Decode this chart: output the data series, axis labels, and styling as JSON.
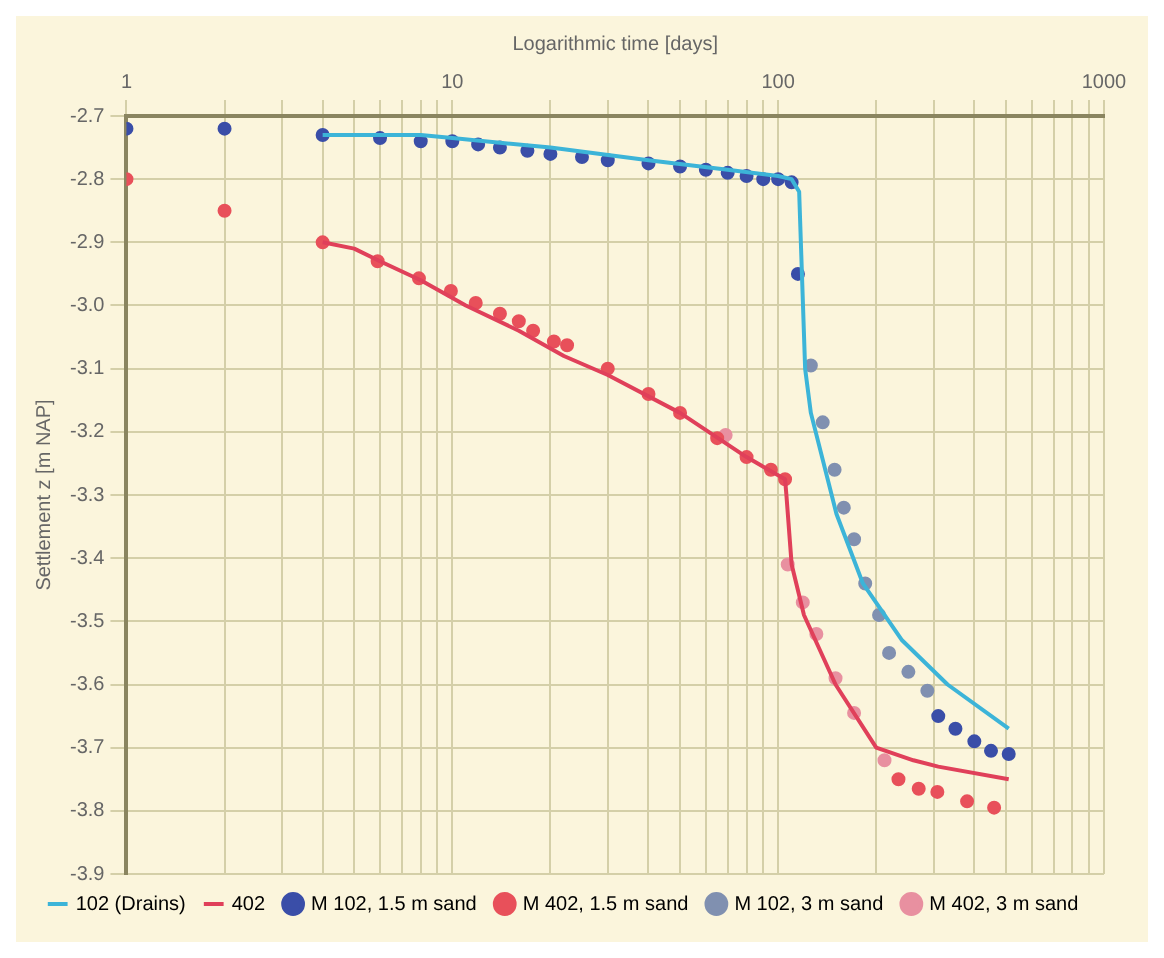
{
  "chart_data": {
    "type": "line",
    "xlabel": "Logarithmic time [days]",
    "ylabel": "Settlement z [m NAP]",
    "log": "x",
    "xlim": [
      1,
      1000
    ],
    "ylim": [
      -3.9,
      -2.7
    ],
    "xticks": [
      1,
      {
        "value": 2,
        "label": null
      },
      {
        "value": 3,
        "label": null
      },
      {
        "value": 4,
        "label": null
      },
      {
        "value": 5,
        "label": null
      },
      {
        "value": 6,
        "label": null
      },
      {
        "value": 7,
        "label": null
      },
      {
        "value": 8,
        "label": null
      },
      {
        "value": 9,
        "label": null
      },
      10,
      {
        "value": 20,
        "label": null
      },
      {
        "value": 30,
        "label": null
      },
      {
        "value": 40,
        "label": null
      },
      {
        "value": 50,
        "label": null
      },
      {
        "value": 60,
        "label": null
      },
      {
        "value": 70,
        "label": null
      },
      {
        "value": 80,
        "label": null
      },
      {
        "value": 90,
        "label": null
      },
      100,
      {
        "value": 200,
        "label": null
      },
      {
        "value": 300,
        "label": null
      },
      {
        "value": 400,
        "label": null
      },
      {
        "value": 500,
        "label": null
      },
      {
        "value": 600,
        "label": null
      },
      {
        "value": 700,
        "label": null
      },
      {
        "value": 800,
        "label": null
      },
      {
        "value": 900,
        "label": null
      },
      1000
    ],
    "yticks": [
      -2.7,
      -2.8,
      -2.9,
      {
        "value": -3,
        "label": "-3.0"
      },
      -3.1,
      -3.2,
      -3.3,
      -3.4,
      -3.5,
      -3.6,
      -3.7,
      -3.8,
      -3.9
    ],
    "grid": true,
    "legend": "bottom",
    "line_style": "solid",
    "series": [
      {
        "name": "102 (Drains)",
        "marker": "none",
        "color": "#3cb4d8",
        "x": [
          4,
          6,
          8,
          10,
          20,
          40,
          70,
          100,
          110,
          116,
          121,
          126,
          151,
          182,
          240,
          331,
          510
        ],
        "values": [
          -2.73,
          -2.73,
          -2.73,
          -2.735,
          -2.75,
          -2.77,
          -2.785,
          -2.795,
          -2.8,
          -2.82,
          -3.1,
          -3.17,
          -3.33,
          -3.44,
          -3.53,
          -3.6,
          -3.67
        ]
      },
      {
        "name": "402",
        "marker": "none",
        "color": "#e0405a",
        "x": [
          4,
          5,
          6,
          8,
          11,
          16,
          22,
          30,
          50,
          80,
          105,
          106,
          110,
          120,
          150,
          200,
          260,
          310,
          510
        ],
        "values": [
          -2.9,
          -2.91,
          -2.93,
          -2.96,
          -3,
          -3.04,
          -3.08,
          -3.11,
          -3.17,
          -3.24,
          -3.275,
          -3.3,
          -3.41,
          -3.49,
          -3.6,
          -3.7,
          -3.72,
          -3.73,
          -3.75
        ]
      },
      {
        "name": "M 102, 1.5 m sand",
        "type": "scatter",
        "marker": "circle",
        "color": "#3a4ea8",
        "x": [
          1,
          2,
          4,
          6,
          8,
          10,
          12,
          14,
          17,
          20,
          25,
          30,
          40,
          50,
          60,
          70,
          80,
          90,
          100,
          110,
          115,
          310,
          350,
          400,
          450,
          510
        ],
        "values": [
          -2.72,
          -2.72,
          -2.73,
          -2.735,
          -2.74,
          -2.74,
          -2.745,
          -2.75,
          -2.755,
          -2.76,
          -2.765,
          -2.77,
          -2.775,
          -2.78,
          -2.785,
          -2.79,
          -2.795,
          -2.8,
          -2.8,
          -2.805,
          -2.95,
          -3.65,
          -3.67,
          -3.69,
          -3.705,
          -3.71
        ]
      },
      {
        "name": "M 402, 1.5 m sand",
        "type": "scatter",
        "marker": "circle",
        "color": "#e8505a",
        "x": [
          1,
          2,
          4,
          5.9,
          7.9,
          9.9,
          11.8,
          14,
          16,
          17.7,
          20.5,
          22.5,
          30,
          40,
          50,
          65,
          80,
          95,
          105,
          234,
          270,
          308,
          380,
          460
        ],
        "values": [
          -2.8,
          -2.85,
          -2.9,
          -2.93,
          -2.957,
          -2.977,
          -2.996,
          -3.013,
          -3.025,
          -3.04,
          -3.057,
          -3.063,
          -3.1,
          -3.14,
          -3.17,
          -3.21,
          -3.24,
          -3.26,
          -3.275,
          -3.75,
          -3.765,
          -3.77,
          -3.785,
          -3.795
        ]
      },
      {
        "name": "M 102, 3 m sand",
        "type": "scatter",
        "marker": "circle",
        "color": "#8090b0",
        "x": [
          126,
          137,
          149,
          159,
          171,
          185,
          204,
          219,
          251,
          287
        ],
        "values": [
          -3.095,
          -3.185,
          -3.26,
          -3.32,
          -3.37,
          -3.44,
          -3.49,
          -3.55,
          -3.58,
          -3.61
        ]
      },
      {
        "name": "M 402, 3 m sand",
        "type": "scatter",
        "marker": "circle",
        "color": "#e890a0",
        "x": [
          69,
          107,
          119,
          131,
          150,
          171,
          212
        ],
        "values": [
          -3.205,
          -3.41,
          -3.47,
          -3.52,
          -3.59,
          -3.645,
          -3.72
        ]
      }
    ]
  }
}
